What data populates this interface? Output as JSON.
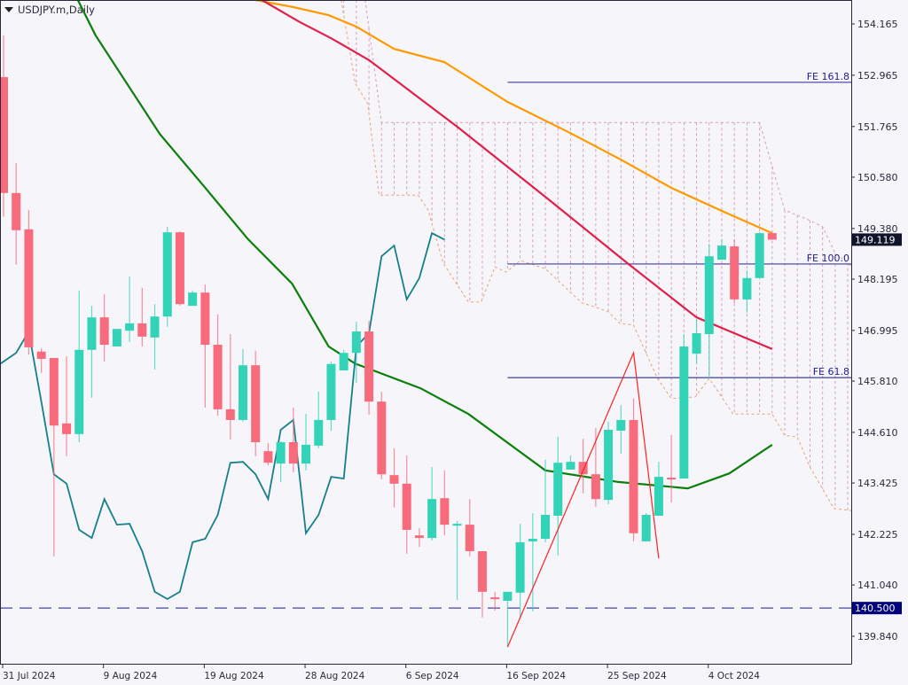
{
  "title": "USDJPY.m,Daily",
  "colors": {
    "background": "#f5f5fa",
    "bull": "#33d3b8",
    "bear": "#f76b7d",
    "ma_orange": "#ff9900",
    "ma_red": "#e0204a",
    "ma_green": "#0a800a",
    "chikou": "#16808a",
    "cloud": "#f0a070",
    "cloud_fill": "#d8a0b8",
    "fibo": "#5050a8",
    "zigzag": "#ff2020",
    "hline": "#1a1a9a",
    "current_price_bg": "#10142a",
    "hline_label_bg": "#00007f"
  },
  "chart_data": {
    "type": "candlestick",
    "title": "USDJPY.m,Daily",
    "ylim": [
      139.6,
      154.7
    ],
    "grid": false,
    "y_ticks": [
      "154.165",
      "152.965",
      "151.765",
      "150.580",
      "149.380",
      "148.195",
      "146.995",
      "145.810",
      "144.610",
      "143.425",
      "142.225",
      "141.040",
      "139.840"
    ],
    "x_ticks": [
      "31 Jul 2024",
      "9 Aug 2024",
      "19 Aug 2024",
      "28 Aug 2024",
      "6 Sep 2024",
      "16 Sep 2024",
      "25 Sep 2024",
      "4 Oct 2024"
    ],
    "current_price": "149.119",
    "horizontal_line": {
      "price": 140.5,
      "label": "140.500"
    },
    "candles_ohlc": [
      [
        152.92,
        153.9,
        149.65,
        150.21
      ],
      [
        150.21,
        150.91,
        148.53,
        149.34
      ],
      [
        149.36,
        149.81,
        146.43,
        146.6
      ],
      [
        146.5,
        146.58,
        146.0,
        146.33
      ],
      [
        146.35,
        146.35,
        141.71,
        144.77
      ],
      [
        144.82,
        146.39,
        144.05,
        144.57
      ],
      [
        144.57,
        147.93,
        144.38,
        146.54
      ],
      [
        146.54,
        147.57,
        145.42,
        147.3
      ],
      [
        147.3,
        147.84,
        146.27,
        146.66
      ],
      [
        146.62,
        147.03,
        146.62,
        147.03
      ],
      [
        146.99,
        148.26,
        146.72,
        147.16
      ],
      [
        147.16,
        147.99,
        146.62,
        146.85
      ],
      [
        146.83,
        147.61,
        146.08,
        147.32
      ],
      [
        147.32,
        149.42,
        147.08,
        149.29
      ],
      [
        149.29,
        149.31,
        147.57,
        147.61
      ],
      [
        147.57,
        147.93,
        147.57,
        147.88
      ],
      [
        147.88,
        148.07,
        145.19,
        146.66
      ],
      [
        146.66,
        147.37,
        145.0,
        145.15
      ],
      [
        145.15,
        146.91,
        144.44,
        144.9
      ],
      [
        144.9,
        146.56,
        144.86,
        146.18
      ],
      [
        146.18,
        146.52,
        144.05,
        144.38
      ],
      [
        144.17,
        144.36,
        143.84,
        143.9
      ],
      [
        143.88,
        144.4,
        143.45,
        144.38
      ],
      [
        144.38,
        145.19,
        143.68,
        143.88
      ],
      [
        143.88,
        145.04,
        143.72,
        144.32
      ],
      [
        144.3,
        145.56,
        144.24,
        144.9
      ],
      [
        144.9,
        146.27,
        144.65,
        146.21
      ],
      [
        146.06,
        146.54,
        146.06,
        146.47
      ],
      [
        146.47,
        147.2,
        145.77,
        146.97
      ],
      [
        146.97,
        147.22,
        145.02,
        145.33
      ],
      [
        145.33,
        145.56,
        143.51,
        143.63
      ],
      [
        143.61,
        144.24,
        142.85,
        143.41
      ],
      [
        143.41,
        144.07,
        141.77,
        142.33
      ],
      [
        142.2,
        142.37,
        141.93,
        142.14
      ],
      [
        142.14,
        143.8,
        142.08,
        143.05
      ],
      [
        143.07,
        143.72,
        142.2,
        142.45
      ],
      [
        142.45,
        142.54,
        140.69,
        142.47
      ],
      [
        142.45,
        143.05,
        141.71,
        141.83
      ],
      [
        141.83,
        141.83,
        140.28,
        140.88
      ],
      [
        140.75,
        140.88,
        140.44,
        140.71
      ],
      [
        140.67,
        140.88,
        139.59,
        140.88
      ],
      [
        140.86,
        142.47,
        140.28,
        142.04
      ],
      [
        142.06,
        142.72,
        140.42,
        142.12
      ],
      [
        142.12,
        143.97,
        142.04,
        142.68
      ],
      [
        142.66,
        144.51,
        141.73,
        143.9
      ],
      [
        143.74,
        144.07,
        143.74,
        143.92
      ],
      [
        143.92,
        144.46,
        143.18,
        143.63
      ],
      [
        143.63,
        144.71,
        142.87,
        143.05
      ],
      [
        143.03,
        144.86,
        142.93,
        144.67
      ],
      [
        144.65,
        145.25,
        144.11,
        144.9
      ],
      [
        144.9,
        145.4,
        142.06,
        142.25
      ],
      [
        142.06,
        142.72,
        142.06,
        142.68
      ],
      [
        142.66,
        143.92,
        142.66,
        143.57
      ],
      [
        143.55,
        144.55,
        142.97,
        143.53
      ],
      [
        143.53,
        146.91,
        143.53,
        146.62
      ],
      [
        146.45,
        147.26,
        146.23,
        146.93
      ],
      [
        146.91,
        149.02,
        145.87,
        148.73
      ],
      [
        148.65,
        149.13,
        148.65,
        148.98
      ],
      [
        148.96,
        149.13,
        147.64,
        147.72
      ],
      [
        147.72,
        148.4,
        147.41,
        148.22
      ],
      [
        148.22,
        149.29,
        148.22,
        149.27
      ],
      [
        149.27,
        149.29,
        149.12,
        149.119
      ]
    ],
    "moving_averages": [
      {
        "color_key": "ma_orange",
        "points": [
          [
            20,
            154.73
          ],
          [
            23,
            154.56
          ],
          [
            25.8,
            154.37
          ],
          [
            28,
            154.1
          ],
          [
            31,
            153.58
          ],
          [
            35,
            153.27
          ],
          [
            40,
            152.34
          ],
          [
            45,
            151.61
          ],
          [
            49,
            150.99
          ],
          [
            53,
            150.33
          ],
          [
            57,
            149.79
          ],
          [
            61,
            149.27
          ]
        ]
      },
      {
        "color_key": "ma_red",
        "points": [
          [
            20.5,
            154.73
          ],
          [
            23.5,
            154.21
          ],
          [
            26,
            153.83
          ],
          [
            29,
            153.32
          ],
          [
            36,
            151.76
          ],
          [
            43,
            150.12
          ],
          [
            49.5,
            148.57
          ],
          [
            55,
            147.3
          ],
          [
            61,
            146.56
          ]
        ]
      },
      {
        "color_key": "ma_green",
        "points": [
          [
            5.9,
            154.73
          ],
          [
            7.3,
            153.9
          ],
          [
            12.4,
            151.59
          ],
          [
            15.9,
            150.37
          ],
          [
            19.4,
            149.13
          ],
          [
            22.9,
            148.09
          ],
          [
            25.8,
            146.62
          ],
          [
            27.9,
            146.22
          ],
          [
            33.1,
            145.64
          ],
          [
            36.9,
            145.04
          ],
          [
            43,
            143.72
          ],
          [
            48.8,
            143.45
          ],
          [
            54.3,
            143.3
          ],
          [
            57.6,
            143.65
          ],
          [
            61,
            144.32
          ]
        ]
      }
    ],
    "ichimoku_cloud": {
      "upper": [
        [
          28.7,
          154.73
        ],
        [
          30,
          151.86
        ],
        [
          60,
          151.86
        ],
        [
          62,
          149.81
        ],
        [
          63.9,
          149.58
        ],
        [
          65,
          149.42
        ],
        [
          66,
          148.8
        ],
        [
          67.3,
          148.5
        ]
      ],
      "lower": [
        [
          26.8,
          154.73
        ],
        [
          27.9,
          152.78
        ],
        [
          28.9,
          152.3
        ],
        [
          29.8,
          150.16
        ],
        [
          32.9,
          150.16
        ],
        [
          33.7,
          149.81
        ],
        [
          34.9,
          148.57
        ],
        [
          36.9,
          147.66
        ],
        [
          37.9,
          147.66
        ],
        [
          39,
          148.48
        ],
        [
          39.9,
          148.36
        ],
        [
          41,
          148.63
        ],
        [
          43,
          148.44
        ],
        [
          45.9,
          147.64
        ],
        [
          46.9,
          147.55
        ],
        [
          48,
          147.43
        ],
        [
          48.9,
          147.16
        ],
        [
          50,
          147.12
        ],
        [
          51.9,
          145.87
        ],
        [
          53,
          145.4
        ],
        [
          54.9,
          145.44
        ],
        [
          56,
          145.87
        ],
        [
          57.9,
          145.04
        ],
        [
          61,
          145.04
        ],
        [
          62,
          144.54
        ],
        [
          63,
          144.5
        ],
        [
          64,
          143.8
        ],
        [
          65.9,
          142.83
        ],
        [
          67.3,
          142.78
        ]
      ]
    },
    "fibo_expansion": {
      "start_bar": 40,
      "levels": [
        {
          "label": "FE 161.8",
          "price": 152.8
        },
        {
          "label": "FE 100.0",
          "price": 148.55
        },
        {
          "label": "FE 61.8",
          "price": 145.89
        }
      ]
    },
    "zigzag": [
      [
        40,
        139.59
      ],
      [
        50,
        146.47
      ],
      [
        52,
        141.66
      ]
    ]
  }
}
